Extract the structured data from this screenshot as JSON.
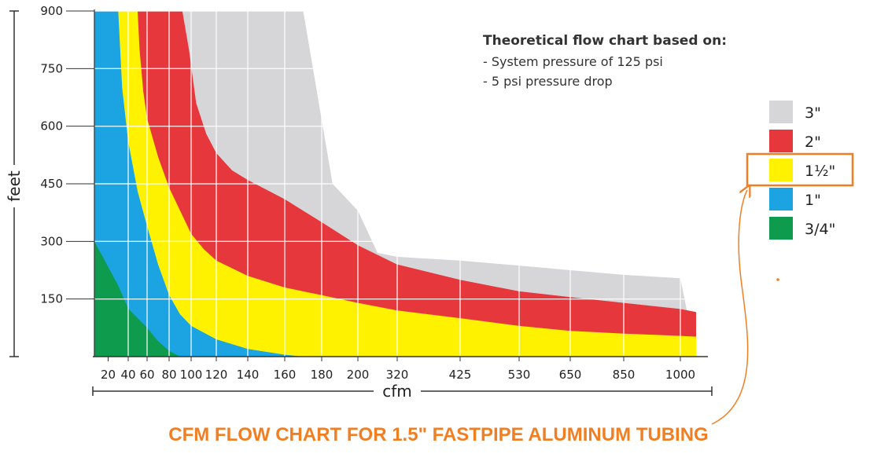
{
  "chart_data": {
    "type": "area",
    "ylabel": "feet",
    "xlabel": "cfm",
    "y_ticks": [
      "900",
      "750",
      "600",
      "450",
      "300",
      "150"
    ],
    "x_ticks": [
      "20",
      "40",
      "60",
      "80",
      "100",
      "120",
      "140",
      "160",
      "180",
      "200",
      "320",
      "425",
      "530",
      "650",
      "850",
      "1000"
    ],
    "ylim": [
      0,
      900
    ],
    "note": {
      "title": "Theoretical flow chart based on:",
      "lines": [
        "- System pressure of 125 psi",
        "- 5 psi pressure drop"
      ]
    },
    "legend": [
      {
        "label": "3\"",
        "color": "#D6D6D8"
      },
      {
        "label": "2\"",
        "color": "#E6373C"
      },
      {
        "label": "1½\"",
        "color": "#FFF200",
        "highlighted": true
      },
      {
        "label": "1\"",
        "color": "#1BA3E2"
      },
      {
        "label": "3/4\"",
        "color": "#0E9B4E"
      }
    ],
    "series": [
      {
        "name": "3\"",
        "color": "#D6D6D8",
        "points": [
          [
            0,
            900
          ],
          [
            7.5,
            900
          ],
          [
            8.3,
            450
          ],
          [
            9.0,
            380
          ],
          [
            9.5,
            270
          ],
          [
            10,
            260
          ],
          [
            11,
            250
          ],
          [
            12,
            237
          ],
          [
            13,
            225
          ],
          [
            14,
            213
          ],
          [
            15,
            204
          ],
          [
            15.5,
            0
          ]
        ]
      },
      {
        "name": "2\"",
        "color": "#E6373C",
        "points": [
          [
            0,
            900
          ],
          [
            3.6,
            900
          ],
          [
            3.9,
            800
          ],
          [
            4.2,
            660
          ],
          [
            4.6,
            580
          ],
          [
            5.0,
            530
          ],
          [
            5.5,
            485
          ],
          [
            6,
            460
          ],
          [
            7,
            410
          ],
          [
            8,
            350
          ],
          [
            9,
            290
          ],
          [
            10,
            240
          ],
          [
            11,
            200
          ],
          [
            12,
            170
          ],
          [
            13,
            155
          ],
          [
            14,
            140
          ],
          [
            15,
            124
          ],
          [
            15.5,
            116
          ],
          [
            15.5,
            0
          ]
        ]
      },
      {
        "name": "1½\"",
        "color": "#FFF200",
        "points": [
          [
            0,
            900
          ],
          [
            1.5,
            900
          ],
          [
            1.6,
            800
          ],
          [
            1.8,
            690
          ],
          [
            2,
            620
          ],
          [
            2.5,
            520
          ],
          [
            3,
            440
          ],
          [
            3.5,
            380
          ],
          [
            4,
            320
          ],
          [
            4.5,
            280
          ],
          [
            5,
            250
          ],
          [
            6,
            210
          ],
          [
            7,
            180
          ],
          [
            8,
            160
          ],
          [
            9,
            140
          ],
          [
            10,
            120
          ],
          [
            11,
            100
          ],
          [
            12,
            80
          ],
          [
            13,
            67
          ],
          [
            14,
            60
          ],
          [
            14.5,
            57
          ],
          [
            15,
            54
          ],
          [
            15.5,
            52
          ],
          [
            15.5,
            0
          ]
        ]
      },
      {
        "name": "1\"",
        "color": "#1BA3E2",
        "points": [
          [
            0,
            900
          ],
          [
            0.5,
            900
          ],
          [
            0.7,
            700
          ],
          [
            1,
            560
          ],
          [
            1.5,
            430
          ],
          [
            2,
            340
          ],
          [
            2.5,
            240
          ],
          [
            3,
            160
          ],
          [
            3.5,
            110
          ],
          [
            4,
            80
          ],
          [
            5,
            45
          ],
          [
            6,
            20
          ],
          [
            7,
            5
          ],
          [
            7.5,
            0
          ]
        ]
      },
      {
        "name": "3/4\"",
        "color": "#0E9B4E",
        "points": [
          [
            0,
            300
          ],
          [
            0.5,
            185
          ],
          [
            1,
            125
          ],
          [
            1.5,
            100
          ],
          [
            2,
            75
          ],
          [
            2.5,
            40
          ],
          [
            3,
            15
          ],
          [
            3.5,
            0
          ]
        ]
      }
    ]
  },
  "caption": "CFM FLOW CHART FOR 1.5\" FASTPIPE ALUMINUM TUBING"
}
